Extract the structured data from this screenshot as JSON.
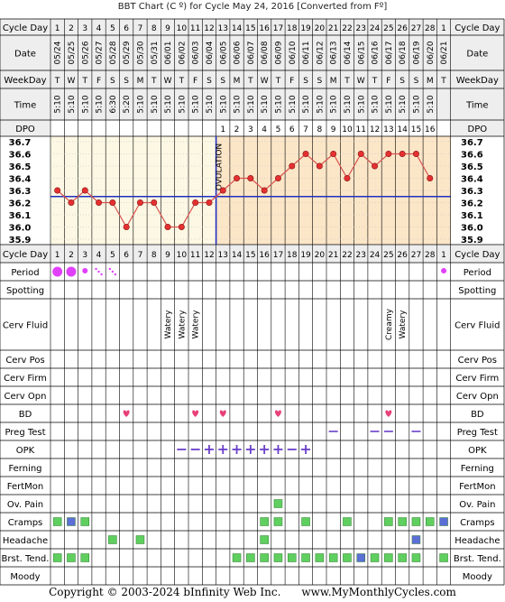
{
  "title": "BBT Chart (C º) for Cycle May 24, 2016  [Converted from Fº]",
  "footer": {
    "copyright": "Copyright © 2003-2024 bInfinity Web Inc.",
    "site": "www.MyMonthlyCycles.com"
  },
  "row_labels": {
    "cycle_day": "Cycle Day",
    "date": "Date",
    "weekday": "WeekDay",
    "time": "Time",
    "dpo": "DPO",
    "period": "Period",
    "spotting": "Spotting",
    "cerv_fluid": "Cerv Fluid",
    "cerv_pos": "Cerv Pos",
    "cerv_firm": "Cerv Firm",
    "cerv_opn": "Cerv Opn",
    "bd": "BD",
    "preg_test": "Preg Test",
    "opk": "OPK",
    "ferning": "Ferning",
    "fertmon": "FertMon",
    "ov_pain": "Ov. Pain",
    "cramps": "Cramps",
    "headache": "Headache",
    "brst_tend": "Brst. Tend.",
    "moody": "Moody"
  },
  "colors": {
    "line": "#d9534f",
    "point": "#e53030",
    "coverline": "#1f2fbf",
    "ovulation_line": "#1f2fbf",
    "luteal_bg": "#fce6c8",
    "follicular_bg": "#fdf8e4",
    "period": "#e040fb",
    "bd": "#e8407a",
    "test_dash": "#6a3fc8",
    "symptom_green": "#5fcf5f",
    "symptom_blue": "#5b6fd6",
    "grid": "#bbbbbb"
  },
  "chart_data": {
    "type": "line",
    "title": "BBT Chart (C º) for Cycle May 24, 2016  [Converted from Fº]",
    "x": [
      1,
      2,
      3,
      4,
      5,
      6,
      7,
      8,
      9,
      10,
      11,
      12,
      13,
      14,
      15,
      16,
      17,
      18,
      19,
      20,
      21,
      22,
      23,
      24,
      25,
      26,
      27,
      28,
      1
    ],
    "dates": [
      "05/24",
      "05/25",
      "05/26",
      "05/27",
      "05/28",
      "05/29",
      "05/30",
      "05/31",
      "06/01",
      "06/02",
      "06/03",
      "06/04",
      "06/05",
      "06/06",
      "06/07",
      "06/08",
      "06/09",
      "06/10",
      "06/11",
      "06/12",
      "06/13",
      "06/14",
      "06/15",
      "06/16",
      "06/17",
      "06/18",
      "06/19",
      "06/20",
      "06/21"
    ],
    "weekdays": [
      "T",
      "W",
      "T",
      "F",
      "S",
      "S",
      "M",
      "T",
      "W",
      "T",
      "F",
      "S",
      "S",
      "M",
      "T",
      "W",
      "T",
      "F",
      "S",
      "S",
      "M",
      "T",
      "W",
      "T",
      "F",
      "S",
      "S",
      "M",
      "T"
    ],
    "times": [
      "5:10",
      "5:10",
      "5:10",
      "5:10",
      "6:30",
      "5:20",
      "5:10",
      "5:10",
      "5:10",
      "5:10",
      "5:10",
      "5:10",
      "5:10",
      "5:10",
      "5:10",
      "5:10",
      "5:10",
      "5:10",
      "5:10",
      "5:10",
      "5:10",
      "5:10",
      "5:10",
      "5:10",
      "5:10",
      "5:10",
      "5:10",
      "5:10",
      ""
    ],
    "dpo": [
      "",
      "",
      "",
      "",
      "",
      "",
      "",
      "",
      "",
      "",
      "",
      "",
      "1",
      "2",
      "3",
      "4",
      "5",
      "6",
      "7",
      "8",
      "9",
      "10",
      "11",
      "12",
      "13",
      "14",
      "15",
      "16",
      ""
    ],
    "series": [
      {
        "values": [
          36.3,
          36.2,
          36.3,
          36.2,
          36.2,
          36.0,
          36.2,
          36.2,
          36.0,
          36.0,
          36.2,
          36.2,
          36.3,
          36.4,
          36.4,
          36.3,
          36.4,
          36.5,
          36.6,
          36.5,
          36.6,
          36.4,
          36.6,
          36.5,
          36.6,
          36.6,
          36.6,
          36.4,
          null
        ]
      }
    ],
    "yticks": [
      36.7,
      36.6,
      36.5,
      36.4,
      36.3,
      36.2,
      36.1,
      36.0,
      35.9
    ],
    "ylim": [
      35.9,
      36.7
    ],
    "coverline": 36.25,
    "ovulation_day": 12,
    "ovulation_label": "OVULATION",
    "period": [
      3,
      3,
      2,
      1,
      1,
      0,
      0,
      0,
      0,
      0,
      0,
      0,
      0,
      0,
      0,
      0,
      0,
      0,
      0,
      0,
      0,
      0,
      0,
      0,
      0,
      0,
      0,
      0,
      2
    ],
    "cerv_fluid": [
      "",
      "",
      "",
      "",
      "",
      "",
      "",
      "",
      "Watery",
      "Watery",
      "Watery",
      "",
      "",
      "",
      "",
      "",
      "",
      "",
      "",
      "",
      "",
      "",
      "",
      "",
      "Creamy",
      "Watery",
      "",
      "",
      ""
    ],
    "bd_days": [
      6,
      11,
      13,
      17,
      25
    ],
    "preg_test_days": [
      21,
      24,
      25,
      27
    ],
    "opk": [
      "",
      "",
      "",
      "",
      "",
      "",
      "",
      "",
      "",
      "neg",
      "neg",
      "pos",
      "pos",
      "pos",
      "pos",
      "pos",
      "pos",
      "neg",
      "pos",
      "",
      "",
      "",
      "",
      "",
      "",
      "",
      "",
      "",
      ""
    ],
    "ov_pain_days": [
      17
    ],
    "cramps": {
      "green": [
        1,
        3,
        16,
        17,
        19,
        22,
        25,
        26,
        27,
        28
      ],
      "blue": [
        2,
        29
      ]
    },
    "headache": {
      "green": [
        5,
        7,
        16
      ],
      "blue": [
        27
      ]
    },
    "brst_tend": {
      "green": [
        1,
        2,
        3,
        14,
        15,
        16,
        17,
        18,
        19,
        20,
        21,
        22,
        24,
        25,
        26,
        27,
        29
      ],
      "blue": [
        23
      ]
    }
  }
}
